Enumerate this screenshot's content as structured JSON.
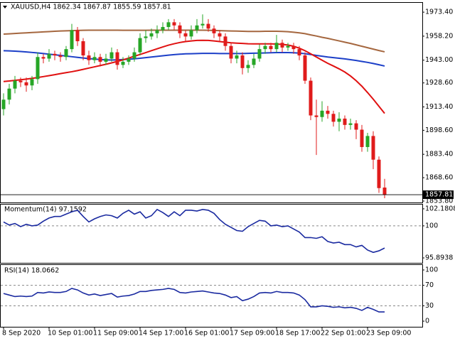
{
  "chart_data": [
    {
      "type": "candlestick",
      "title": "XAUUSD,H4  1862.34 1867.87 1855.59 1857.81",
      "categories": [
        "8 Sep 2020",
        null,
        null,
        null,
        null,
        null,
        null,
        null,
        "10 Sep 01:00",
        null,
        null,
        null,
        null,
        null,
        null,
        null,
        "11 Sep 09:00",
        null,
        null,
        null,
        null,
        null,
        null,
        null,
        "14 Sep 17:00",
        null,
        null,
        null,
        null,
        null,
        null,
        null,
        "16 Sep 01:00",
        null,
        null,
        null,
        null,
        null,
        null,
        null,
        "17 Sep 09:00",
        null,
        null,
        null,
        null,
        null,
        null,
        null,
        "18 Sep 17:00",
        null,
        null,
        null,
        null,
        null,
        null,
        null,
        "22 Sep 01:00",
        null,
        null,
        null,
        null,
        null,
        null,
        null,
        "23 Sep 09:00",
        null,
        null,
        null
      ],
      "open": [
        1912,
        1918,
        1925,
        1930,
        1929,
        1927,
        1931,
        1945,
        1944,
        1947,
        1946,
        1945,
        1950,
        1962,
        1955,
        1946,
        1943,
        1945,
        1942,
        1944,
        1948,
        1940,
        1942,
        1944,
        1948,
        1957,
        1958,
        1960,
        1962,
        1964,
        1967,
        1965,
        1960,
        1958,
        1962,
        1965,
        1966,
        1963,
        1960,
        1958,
        1952,
        1944,
        1946,
        1938,
        1940,
        1944,
        1950,
        1952,
        1950,
        1954,
        1951,
        1952,
        1950,
        1946,
        1930,
        1908,
        1907,
        1911,
        1909,
        1904,
        1906,
        1902,
        1903,
        1899,
        1888,
        1895,
        1880,
        1862.34
      ],
      "high": [
        1922,
        1928,
        1933,
        1932,
        1932,
        1933,
        1948,
        1947,
        1950,
        1949,
        1948,
        1952,
        1966,
        1964,
        1957,
        1949,
        1948,
        1947,
        1947,
        1951,
        1950,
        1945,
        1946,
        1951,
        1960,
        1962,
        1963,
        1965,
        1967,
        1969,
        1969,
        1967,
        1962,
        1965,
        1969,
        1972,
        1969,
        1965,
        1962,
        1960,
        1954,
        1949,
        1948,
        1943,
        1947,
        1953,
        1954,
        1954,
        1959,
        1956,
        1954,
        1954,
        1952,
        1948,
        1932,
        1918,
        1917,
        1914,
        1911,
        1910,
        1908,
        1906,
        1905,
        1902,
        1897,
        1898,
        1882,
        1867.87
      ],
      "low": [
        1908,
        1915,
        1922,
        1926,
        1923,
        1924,
        1928,
        1941,
        1942,
        1943,
        1942,
        1943,
        1948,
        1952,
        1943,
        1940,
        1941,
        1939,
        1940,
        1942,
        1937,
        1938,
        1940,
        1942,
        1946,
        1954,
        1956,
        1957,
        1960,
        1962,
        1962,
        1957,
        1955,
        1956,
        1960,
        1963,
        1961,
        1957,
        1955,
        1949,
        1941,
        1941,
        1934,
        1935,
        1938,
        1942,
        1947,
        1948,
        1948,
        1948,
        1949,
        1947,
        1943,
        1928,
        1905,
        1883,
        1904,
        1906,
        1901,
        1898,
        1899,
        1899,
        1893,
        1885,
        1885,
        1874,
        1859,
        1855.59
      ],
      "close": [
        1918,
        1925,
        1930,
        1929,
        1927,
        1931,
        1945,
        1944,
        1947,
        1946,
        1945,
        1950,
        1962,
        1955,
        1946,
        1943,
        1945,
        1942,
        1944,
        1948,
        1940,
        1942,
        1944,
        1948,
        1957,
        1958,
        1960,
        1962,
        1964,
        1967,
        1965,
        1960,
        1958,
        1962,
        1965,
        1966,
        1963,
        1960,
        1958,
        1952,
        1944,
        1946,
        1938,
        1940,
        1944,
        1950,
        1952,
        1950,
        1954,
        1951,
        1952,
        1950,
        1946,
        1930,
        1908,
        1907,
        1911,
        1909,
        1904,
        1906,
        1902,
        1903,
        1899,
        1888,
        1895,
        1880,
        1862,
        1857.81
      ],
      "up_color": "#26a626",
      "down_color": "#e01b1b",
      "series": [
        {
          "color": "#a5673f",
          "values": [
            1959.5,
            1959.7,
            1959.9,
            1960.1,
            1960.3,
            1960.5,
            1960.7,
            1960.9,
            1961.1,
            1961.3,
            1961.5,
            1961.6,
            1961.7,
            1961.8,
            1961.9,
            1962,
            1962,
            1962,
            1962,
            1962,
            1962,
            1961.9,
            1961.9,
            1961.9,
            1961.9,
            1961.9,
            1962,
            1962,
            1962,
            1962,
            1962,
            1962,
            1962,
            1962,
            1962,
            1962,
            1961.9,
            1961.8,
            1961.7,
            1961.6,
            1961.5,
            1961.4,
            1961.3,
            1961.2,
            1961.2,
            1961.2,
            1961.3,
            1961.3,
            1961.3,
            1961.2,
            1961,
            1960.7,
            1960.3,
            1959.8,
            1959,
            1958.3,
            1957.5,
            1956.8,
            1956,
            1955.2,
            1954.4,
            1953.6,
            1952.7,
            1951.8,
            1950.9,
            1950,
            1949.1,
            1948.3
          ]
        },
        {
          "color": "#1c3fc8",
          "values": [
            1949,
            1948.9,
            1948.7,
            1948.5,
            1948.2,
            1947.9,
            1947.6,
            1947.2,
            1946.8,
            1946.4,
            1946,
            1945.6,
            1945.2,
            1944.8,
            1944.4,
            1944,
            1943.7,
            1943.4,
            1943.2,
            1943.1,
            1943.2,
            1943.4,
            1943.6,
            1943.9,
            1944.2,
            1944.6,
            1945,
            1945.4,
            1945.8,
            1946.2,
            1946.5,
            1946.8,
            1947,
            1947.1,
            1947.2,
            1947.3,
            1947.3,
            1947.3,
            1947.2,
            1947.2,
            1947.2,
            1947.2,
            1947.2,
            1947.3,
            1947.4,
            1947.5,
            1947.6,
            1947.7,
            1947.8,
            1947.8,
            1947.8,
            1947.7,
            1947.5,
            1947.1,
            1946.6,
            1946,
            1945.5,
            1945,
            1944.6,
            1944.2,
            1943.8,
            1943.3,
            1942.8,
            1942.2,
            1941.6,
            1940.9,
            1940.1,
            1939.3
          ]
        },
        {
          "color": "#e01010",
          "values": [
            1929.5,
            1929.8,
            1930.2,
            1930.6,
            1931,
            1931.5,
            1932,
            1932.6,
            1933.2,
            1933.8,
            1934.5,
            1935.1,
            1935.7,
            1936.4,
            1937.2,
            1938,
            1938.8,
            1939.6,
            1940.4,
            1941.3,
            1942.2,
            1943.2,
            1944.3,
            1945.5,
            1946.6,
            1947.8,
            1949,
            1950.2,
            1951.4,
            1952.5,
            1953.4,
            1954.2,
            1954.8,
            1955.2,
            1955.5,
            1955.6,
            1955.5,
            1955.2,
            1954.8,
            1954.4,
            1954,
            1953.8,
            1953.6,
            1953.4,
            1953.3,
            1953.3,
            1953.3,
            1953.3,
            1953.2,
            1953,
            1952.6,
            1951.8,
            1950.6,
            1949,
            1947,
            1945,
            1943,
            1941,
            1939.3,
            1937.5,
            1935.5,
            1933,
            1930,
            1926.5,
            1922.5,
            1918.3,
            1913.8,
            1909.3
          ]
        }
      ],
      "ylim": [
        1852.9,
        1979.3
      ],
      "yticks": [
        {
          "value": 1973.4,
          "label": "1973.40"
        },
        {
          "value": 1958.2,
          "label": "1958.20"
        },
        {
          "value": 1943.0,
          "label": "1943.00"
        },
        {
          "value": 1928.6,
          "label": "1928.60"
        },
        {
          "value": 1913.4,
          "label": "1913.40"
        },
        {
          "value": 1898.6,
          "label": "1898.60"
        },
        {
          "value": 1883.4,
          "label": "1883.40"
        },
        {
          "value": 1868.6,
          "label": "1868.60"
        },
        {
          "value": 1853.8,
          "label": "1853.80"
        }
      ]
    },
    {
      "type": "line",
      "title": "Momentum(14) 97.1592",
      "color": "#1a2aa0",
      "values": [
        100.5,
        100.1,
        100.3,
        99.9,
        100.2,
        100.0,
        100.1,
        100.6,
        101.0,
        101.2,
        101.2,
        101.5,
        101.8,
        102.0,
        101.2,
        100.5,
        100.9,
        101.2,
        101.4,
        101.3,
        101.0,
        101.6,
        102.0,
        101.5,
        101.8,
        101.0,
        101.3,
        102.1,
        101.7,
        101.2,
        101.8,
        101.3,
        102.0,
        102.0,
        101.9,
        102.1,
        102.0,
        101.6,
        100.8,
        100.2,
        99.8,
        99.4,
        99.3,
        99.9,
        100.3,
        100.7,
        100.6,
        100.0,
        100.1,
        99.9,
        100.0,
        99.6,
        99.2,
        98.5,
        98.5,
        98.4,
        98.6,
        98.0,
        97.8,
        97.9,
        97.6,
        97.6,
        97.3,
        97.5,
        96.9,
        96.6,
        96.8,
        97.1592
      ],
      "ylim": [
        95.26,
        102.72
      ],
      "yticks": [
        102.1808,
        100,
        95.8938
      ],
      "levels": [
        100
      ]
    },
    {
      "type": "line",
      "title": "RSI(14) 18.0662",
      "color": "#1a2aa0",
      "values": [
        54,
        51,
        48,
        49,
        48,
        49,
        56,
        55,
        57,
        56,
        56,
        58,
        64,
        61,
        55,
        51,
        53,
        50,
        52,
        54,
        47,
        49,
        50,
        53,
        58,
        58,
        60,
        61,
        62,
        64,
        62,
        56,
        55,
        57,
        58,
        59,
        57,
        55,
        54,
        51,
        46,
        48,
        40,
        43,
        48,
        55,
        56,
        55,
        58,
        56,
        56,
        55,
        51,
        42,
        28,
        28,
        30,
        29,
        27,
        28,
        26,
        27,
        25,
        21,
        27,
        23,
        18,
        18.0662
      ],
      "ylim": [
        -11,
        109.7
      ],
      "yticks": [
        100,
        70,
        30,
        0
      ],
      "levels": [
        70,
        30
      ]
    }
  ]
}
